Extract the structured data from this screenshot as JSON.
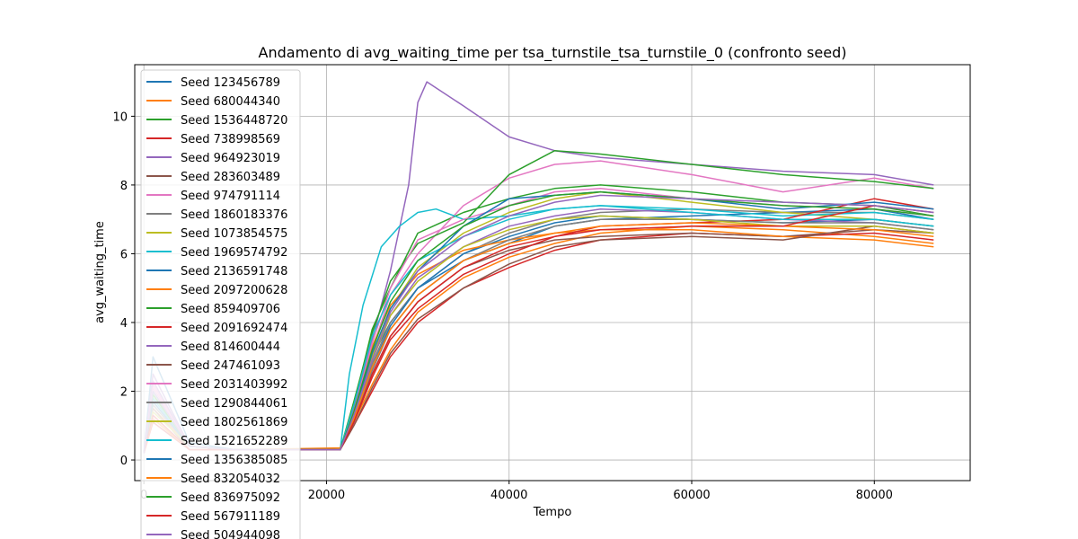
{
  "chart_data": {
    "type": "line",
    "title": "Andamento di avg_waiting_time per tsa_turnstile_tsa_turnstile_0 (confronto seed)",
    "xlabel": "Tempo",
    "ylabel": "avg_waiting_time",
    "xlim": [
      -1000,
      90500
    ],
    "ylim": [
      -0.6,
      11.5
    ],
    "x_ticks": [
      0,
      20000,
      40000,
      60000,
      80000
    ],
    "x_tick_labels": [
      "0",
      "20000",
      "40000",
      "60000",
      "80000"
    ],
    "y_ticks": [
      0,
      2,
      4,
      6,
      8,
      10
    ],
    "y_tick_labels": [
      "0",
      "2",
      "4",
      "6",
      "8",
      "10"
    ],
    "grid": true,
    "legend_position": "top-left",
    "palette": [
      "#1f77b4",
      "#ff7f0e",
      "#2ca02c",
      "#d62728",
      "#9467bd",
      "#8c564b",
      "#e377c2",
      "#7f7f7f",
      "#bcbd22",
      "#17becf"
    ],
    "series": [
      {
        "name": "Seed 123456789",
        "x": [
          0,
          1000,
          5000,
          10000,
          21500,
          23000,
          25000,
          27000,
          30000,
          35000,
          40000,
          45000,
          50000,
          60000,
          70000,
          80000,
          86500
        ],
        "y": [
          0.2,
          3.0,
          0.5,
          0.3,
          0.3,
          1.3,
          3.0,
          4.0,
          5.0,
          5.8,
          6.3,
          6.8,
          7.0,
          7.1,
          7.2,
          7.3,
          7.0
        ]
      },
      {
        "name": "Seed 680044340",
        "x": [
          0,
          1000,
          5000,
          10000,
          21500,
          23000,
          25000,
          27000,
          30000,
          35000,
          40000,
          45000,
          50000,
          60000,
          70000,
          80000,
          86500
        ],
        "y": [
          0.2,
          1.5,
          0.4,
          0.3,
          0.3,
          1.1,
          2.2,
          3.2,
          4.3,
          5.3,
          5.9,
          6.3,
          6.6,
          6.8,
          6.7,
          6.5,
          6.3
        ]
      },
      {
        "name": "Seed 1536448720",
        "x": [
          0,
          1000,
          5000,
          10000,
          21500,
          23000,
          25000,
          27000,
          30000,
          35000,
          40000,
          45000,
          50000,
          60000,
          70000,
          80000,
          86500
        ],
        "y": [
          0.2,
          2.0,
          0.4,
          0.3,
          0.3,
          1.6,
          3.8,
          5.0,
          6.6,
          7.2,
          7.6,
          7.9,
          8.0,
          7.8,
          7.5,
          7.4,
          7.1
        ]
      },
      {
        "name": "Seed 738998569",
        "x": [
          0,
          1000,
          5000,
          10000,
          21500,
          23000,
          25000,
          27000,
          30000,
          35000,
          40000,
          45000,
          50000,
          60000,
          70000,
          80000,
          86500
        ],
        "y": [
          0.2,
          1.2,
          0.3,
          0.3,
          0.3,
          1.0,
          2.0,
          3.0,
          4.0,
          5.0,
          5.6,
          6.1,
          6.4,
          6.6,
          6.5,
          6.6,
          6.4
        ]
      },
      {
        "name": "Seed 964923019",
        "x": [
          0,
          1000,
          5000,
          10000,
          21500,
          23000,
          25000,
          27000,
          29000,
          30000,
          31000,
          35000,
          40000,
          45000,
          50000,
          60000,
          70000,
          80000,
          86500
        ],
        "y": [
          0.2,
          2.5,
          0.4,
          0.3,
          0.3,
          1.5,
          3.5,
          5.5,
          8.0,
          10.4,
          11.0,
          10.3,
          9.4,
          9.0,
          8.8,
          8.6,
          8.4,
          8.3,
          8.0
        ]
      },
      {
        "name": "Seed 283603489",
        "x": [
          0,
          1000,
          5000,
          10000,
          21500,
          23000,
          25000,
          27000,
          30000,
          35000,
          40000,
          45000,
          50000,
          60000,
          70000,
          80000,
          86500
        ],
        "y": [
          0.2,
          1.8,
          0.4,
          0.3,
          0.3,
          1.2,
          2.5,
          3.6,
          4.6,
          5.6,
          6.1,
          6.4,
          6.5,
          6.6,
          6.5,
          6.7,
          6.6
        ]
      },
      {
        "name": "Seed 974791114",
        "x": [
          0,
          1000,
          5000,
          10000,
          21500,
          23000,
          25000,
          27000,
          30000,
          35000,
          40000,
          45000,
          50000,
          60000,
          70000,
          80000,
          86500
        ],
        "y": [
          0.2,
          2.2,
          0.4,
          0.3,
          0.3,
          1.3,
          3.2,
          4.8,
          6.0,
          7.4,
          8.2,
          8.6,
          8.7,
          8.3,
          7.8,
          8.2,
          7.9
        ]
      },
      {
        "name": "Seed 1860183376",
        "x": [
          0,
          1000,
          5000,
          10000,
          21500,
          23000,
          25000,
          27000,
          30000,
          35000,
          40000,
          45000,
          50000,
          60000,
          70000,
          80000,
          86500
        ],
        "y": [
          0.2,
          1.6,
          0.4,
          0.3,
          0.3,
          1.3,
          2.8,
          4.0,
          5.0,
          6.0,
          6.6,
          7.0,
          7.2,
          7.3,
          7.2,
          7.2,
          7.0
        ]
      },
      {
        "name": "Seed 1073854575",
        "x": [
          0,
          1000,
          5000,
          10000,
          21500,
          23000,
          25000,
          27000,
          30000,
          35000,
          40000,
          45000,
          50000,
          60000,
          70000,
          80000,
          86500
        ],
        "y": [
          0.2,
          1.4,
          0.4,
          0.3,
          0.3,
          1.3,
          3.0,
          4.4,
          5.6,
          6.6,
          7.2,
          7.6,
          7.8,
          7.5,
          7.2,
          7.0,
          6.8
        ]
      },
      {
        "name": "Seed 1969574792",
        "x": [
          0,
          1000,
          5000,
          10000,
          21500,
          22500,
          24000,
          26000,
          28000,
          30000,
          32000,
          35000,
          40000,
          45000,
          50000,
          60000,
          70000,
          80000,
          86500
        ],
        "y": [
          0.2,
          2.0,
          0.4,
          0.3,
          0.3,
          2.5,
          4.5,
          6.2,
          6.8,
          7.2,
          7.3,
          7.0,
          7.1,
          7.3,
          7.4,
          7.3,
          7.1,
          7.2,
          7.0
        ]
      },
      {
        "name": "Seed 2136591748",
        "x": [
          0,
          1000,
          5000,
          10000,
          21500,
          23000,
          25000,
          27000,
          30000,
          35000,
          40000,
          45000,
          50000,
          60000,
          70000,
          80000,
          86500
        ],
        "y": [
          0.2,
          1.7,
          0.4,
          0.3,
          0.3,
          1.2,
          2.7,
          3.9,
          5.0,
          6.0,
          6.5,
          6.9,
          7.1,
          7.0,
          6.9,
          7.0,
          6.8
        ]
      },
      {
        "name": "Seed 2097200628",
        "x": [
          0,
          1000,
          5000,
          10000,
          21500,
          23000,
          25000,
          27000,
          30000,
          35000,
          40000,
          45000,
          50000,
          60000,
          70000,
          80000,
          86500
        ],
        "y": [
          0.2,
          1.3,
          0.3,
          0.3,
          0.35,
          1.4,
          3.3,
          4.5,
          5.4,
          6.1,
          6.4,
          6.6,
          6.7,
          6.7,
          6.5,
          6.4,
          6.2
        ]
      },
      {
        "name": "Seed 859409706",
        "x": [
          0,
          1000,
          5000,
          10000,
          21500,
          23000,
          25000,
          27000,
          30000,
          35000,
          40000,
          45000,
          50000,
          60000,
          70000,
          80000,
          86500
        ],
        "y": [
          0.2,
          1.9,
          0.4,
          0.3,
          0.3,
          1.7,
          3.7,
          5.2,
          6.3,
          6.9,
          8.3,
          9.0,
          8.9,
          8.6,
          8.3,
          8.1,
          7.9
        ]
      },
      {
        "name": "Seed 2091692474",
        "x": [
          0,
          1000,
          5000,
          10000,
          21500,
          23000,
          25000,
          27000,
          30000,
          35000,
          40000,
          45000,
          50000,
          60000,
          70000,
          80000,
          86500
        ],
        "y": [
          0.2,
          1.1,
          0.3,
          0.3,
          0.3,
          1.1,
          2.4,
          3.5,
          4.4,
          5.4,
          6.0,
          6.5,
          6.8,
          6.9,
          7.0,
          7.6,
          7.3
        ]
      },
      {
        "name": "Seed 814600444",
        "x": [
          0,
          1000,
          5000,
          10000,
          21500,
          23000,
          25000,
          27000,
          30000,
          35000,
          40000,
          45000,
          50000,
          60000,
          70000,
          80000,
          86500
        ],
        "y": [
          0.2,
          2.3,
          0.4,
          0.3,
          0.3,
          1.3,
          2.9,
          4.2,
          5.3,
          6.2,
          6.8,
          7.1,
          7.3,
          7.2,
          7.0,
          6.9,
          6.7
        ]
      },
      {
        "name": "Seed 247461093",
        "x": [
          0,
          1000,
          5000,
          10000,
          21500,
          23000,
          25000,
          27000,
          30000,
          35000,
          40000,
          45000,
          50000,
          60000,
          70000,
          80000,
          86500
        ],
        "y": [
          0.2,
          1.5,
          0.3,
          0.3,
          0.3,
          1.0,
          2.1,
          3.1,
          4.1,
          5.0,
          5.7,
          6.2,
          6.4,
          6.5,
          6.4,
          6.8,
          6.6
        ]
      },
      {
        "name": "Seed 2031403992",
        "x": [
          0,
          1000,
          5000,
          10000,
          21500,
          23000,
          25000,
          27000,
          30000,
          35000,
          40000,
          45000,
          50000,
          60000,
          70000,
          80000,
          86500
        ],
        "y": [
          0.2,
          2.1,
          0.4,
          0.3,
          0.3,
          1.4,
          3.4,
          5.0,
          6.4,
          7.0,
          7.4,
          7.8,
          7.9,
          7.6,
          7.4,
          7.3,
          7.1
        ]
      },
      {
        "name": "Seed 1290844061",
        "x": [
          0,
          1000,
          5000,
          10000,
          21500,
          23000,
          25000,
          27000,
          30000,
          35000,
          40000,
          45000,
          50000,
          60000,
          70000,
          80000,
          86500
        ],
        "y": [
          0.2,
          1.6,
          0.4,
          0.3,
          0.3,
          1.2,
          2.6,
          3.8,
          4.8,
          5.8,
          6.4,
          6.8,
          7.0,
          7.0,
          6.9,
          6.9,
          6.7
        ]
      },
      {
        "name": "Seed 1802561869",
        "x": [
          0,
          1000,
          5000,
          10000,
          21500,
          23000,
          25000,
          27000,
          30000,
          35000,
          40000,
          45000,
          50000,
          60000,
          70000,
          80000,
          86500
        ],
        "y": [
          0.2,
          1.4,
          0.4,
          0.3,
          0.3,
          1.3,
          2.9,
          4.2,
          5.2,
          6.2,
          6.7,
          7.0,
          7.1,
          7.0,
          6.8,
          6.8,
          6.6
        ]
      },
      {
        "name": "Seed 1521652289",
        "x": [
          0,
          1000,
          5000,
          10000,
          21500,
          23000,
          25000,
          27000,
          30000,
          35000,
          40000,
          45000,
          50000,
          60000,
          70000,
          80000,
          86500
        ],
        "y": [
          0.2,
          1.8,
          0.4,
          0.3,
          0.3,
          1.6,
          3.6,
          4.8,
          5.8,
          6.5,
          7.0,
          7.3,
          7.4,
          7.2,
          7.0,
          7.0,
          6.8
        ]
      },
      {
        "name": "Seed 1356385085",
        "x": [
          0,
          1000,
          5000,
          10000,
          21500,
          23000,
          25000,
          27000,
          30000,
          35000,
          40000,
          45000,
          50000,
          60000,
          70000,
          80000,
          86500
        ],
        "y": [
          0.2,
          1.7,
          0.4,
          0.3,
          0.3,
          1.3,
          3.1,
          4.4,
          5.5,
          6.8,
          7.6,
          7.7,
          7.8,
          7.6,
          7.3,
          7.5,
          7.3
        ]
      },
      {
        "name": "Seed 832054032",
        "x": [
          0,
          1000,
          5000,
          10000,
          21500,
          23000,
          25000,
          27000,
          30000,
          35000,
          40000,
          45000,
          50000,
          60000,
          70000,
          80000,
          86500
        ],
        "y": [
          0.2,
          1.2,
          0.3,
          0.3,
          0.3,
          1.2,
          2.7,
          3.8,
          4.8,
          5.8,
          6.3,
          6.6,
          6.8,
          6.9,
          6.8,
          6.7,
          6.5
        ]
      },
      {
        "name": "Seed 836975092",
        "x": [
          0,
          1000,
          5000,
          10000,
          21500,
          23000,
          25000,
          27000,
          30000,
          35000,
          40000,
          45000,
          50000,
          60000,
          70000,
          80000,
          86500
        ],
        "y": [
          0.2,
          1.9,
          0.4,
          0.3,
          0.3,
          1.4,
          3.2,
          4.6,
          5.8,
          6.8,
          7.4,
          7.7,
          7.8,
          7.6,
          7.4,
          7.3,
          7.1
        ]
      },
      {
        "name": "Seed 567911189",
        "x": [
          0,
          1000,
          5000,
          10000,
          21500,
          23000,
          25000,
          27000,
          30000,
          35000,
          40000,
          45000,
          50000,
          60000,
          70000,
          80000,
          86500
        ],
        "y": [
          0.2,
          1.3,
          0.3,
          0.3,
          0.3,
          1.1,
          2.5,
          3.6,
          4.6,
          5.6,
          6.2,
          6.5,
          6.7,
          6.8,
          6.8,
          7.4,
          7.2
        ]
      },
      {
        "name": "Seed 504944098",
        "x": [
          0,
          1000,
          5000,
          10000,
          21500,
          23000,
          25000,
          27000,
          30000,
          35000,
          40000,
          45000,
          50000,
          60000,
          70000,
          80000,
          86500
        ],
        "y": [
          0.2,
          2.0,
          0.4,
          0.3,
          0.3,
          1.3,
          2.9,
          4.3,
          5.5,
          6.5,
          7.1,
          7.5,
          7.7,
          7.6,
          7.5,
          7.4,
          7.2
        ]
      }
    ]
  }
}
